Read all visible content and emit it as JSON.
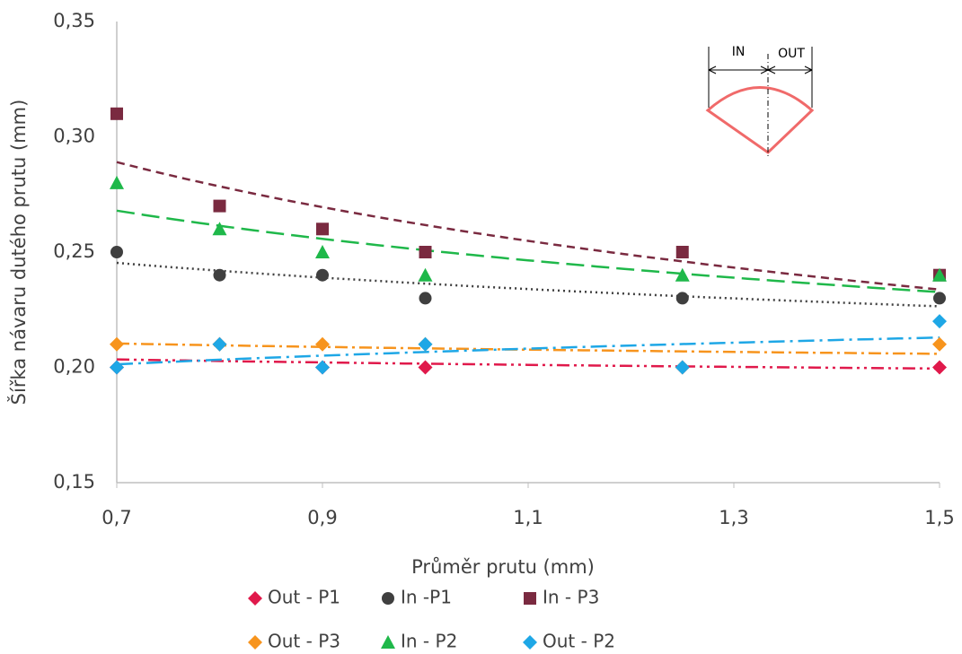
{
  "chart_data": {
    "type": "scatter",
    "x_label": "Průměr prutu (mm)",
    "y_label": "Šířka návaru dutého prutu (mm)",
    "x": [
      0.7,
      0.8,
      0.9,
      1.0,
      1.25,
      1.5
    ],
    "series": [
      {
        "name": "Out - P1",
        "color": "#e0194b",
        "marker": "diamond",
        "values": [
          0.2,
          0.21,
          0.2,
          0.2,
          0.2,
          0.2
        ]
      },
      {
        "name": "In -P1",
        "color": "#3f3f3f",
        "marker": "circle",
        "values": [
          0.25,
          0.24,
          0.24,
          0.23,
          0.23,
          0.23
        ]
      },
      {
        "name": "In - P3",
        "color": "#7a2a40",
        "marker": "square",
        "values": [
          0.31,
          0.27,
          0.26,
          0.25,
          0.25,
          0.24
        ]
      },
      {
        "name": "Out - P3",
        "color": "#f7941d",
        "marker": "diamond",
        "values": [
          0.21,
          0.21,
          0.21,
          0.21,
          0.2,
          0.21
        ]
      },
      {
        "name": "In - P2",
        "color": "#1fb84a",
        "marker": "triangle",
        "values": [
          0.28,
          0.26,
          0.25,
          0.24,
          0.24,
          0.24
        ]
      },
      {
        "name": "Out - P2",
        "color": "#1ea7e6",
        "marker": "diamond",
        "values": [
          0.2,
          0.21,
          0.2,
          0.21,
          0.2,
          0.22
        ]
      }
    ],
    "trendline": "power",
    "xlim": [
      0.7,
      1.5
    ],
    "xticks": [
      {
        "value": 0.7,
        "label": "0,7"
      },
      {
        "value": 0.9,
        "label": "0,9"
      },
      {
        "value": 1.1,
        "label": "1,1"
      },
      {
        "value": 1.3,
        "label": "1,3"
      },
      {
        "value": 1.5,
        "label": "1,5"
      }
    ],
    "ylim": [
      0.15,
      0.35
    ],
    "yticks": [
      {
        "value": 0.15,
        "label": "0,15"
      },
      {
        "value": 0.2,
        "label": "0,20"
      },
      {
        "value": 0.25,
        "label": "0,25"
      },
      {
        "value": 0.3,
        "label": "0,30"
      },
      {
        "value": 0.35,
        "label": "0,35"
      }
    ],
    "grid": false,
    "legend": "bottom",
    "inset": {
      "left_label": "IN",
      "right_label": "OUT"
    }
  }
}
